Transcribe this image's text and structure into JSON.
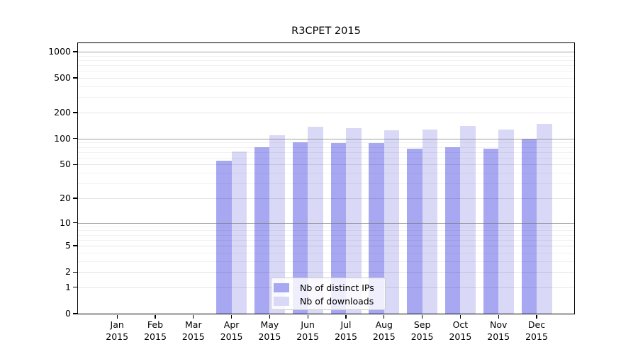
{
  "chart_data": {
    "type": "bar",
    "title": "R3CPET 2015",
    "categories": [
      "Jan",
      "Feb",
      "Mar",
      "Apr",
      "May",
      "Jun",
      "Jul",
      "Aug",
      "Sep",
      "Oct",
      "Nov",
      "Dec"
    ],
    "category_year": "2015",
    "series": [
      {
        "name": "Nb of distinct IPs",
        "color": "#a8a8f2",
        "values": [
          0,
          0,
          0,
          55,
          79,
          90,
          89,
          89,
          77,
          80,
          77,
          99
        ]
      },
      {
        "name": "Nb of downloads",
        "color": "#d9d9f7",
        "values": [
          0,
          0,
          0,
          71,
          110,
          138,
          133,
          126,
          128,
          140,
          128,
          149
        ]
      }
    ],
    "yscale": "log10(1+y)",
    "yticks": [
      0,
      1,
      2,
      5,
      10,
      20,
      50,
      100,
      200,
      500,
      1000
    ],
    "ylim": [
      0,
      1250
    ],
    "xlabel": "",
    "ylabel": "",
    "grid": true,
    "legend": {
      "position": "lower-center",
      "entries": [
        "Nb of distinct IPs",
        "Nb of downloads"
      ]
    }
  }
}
